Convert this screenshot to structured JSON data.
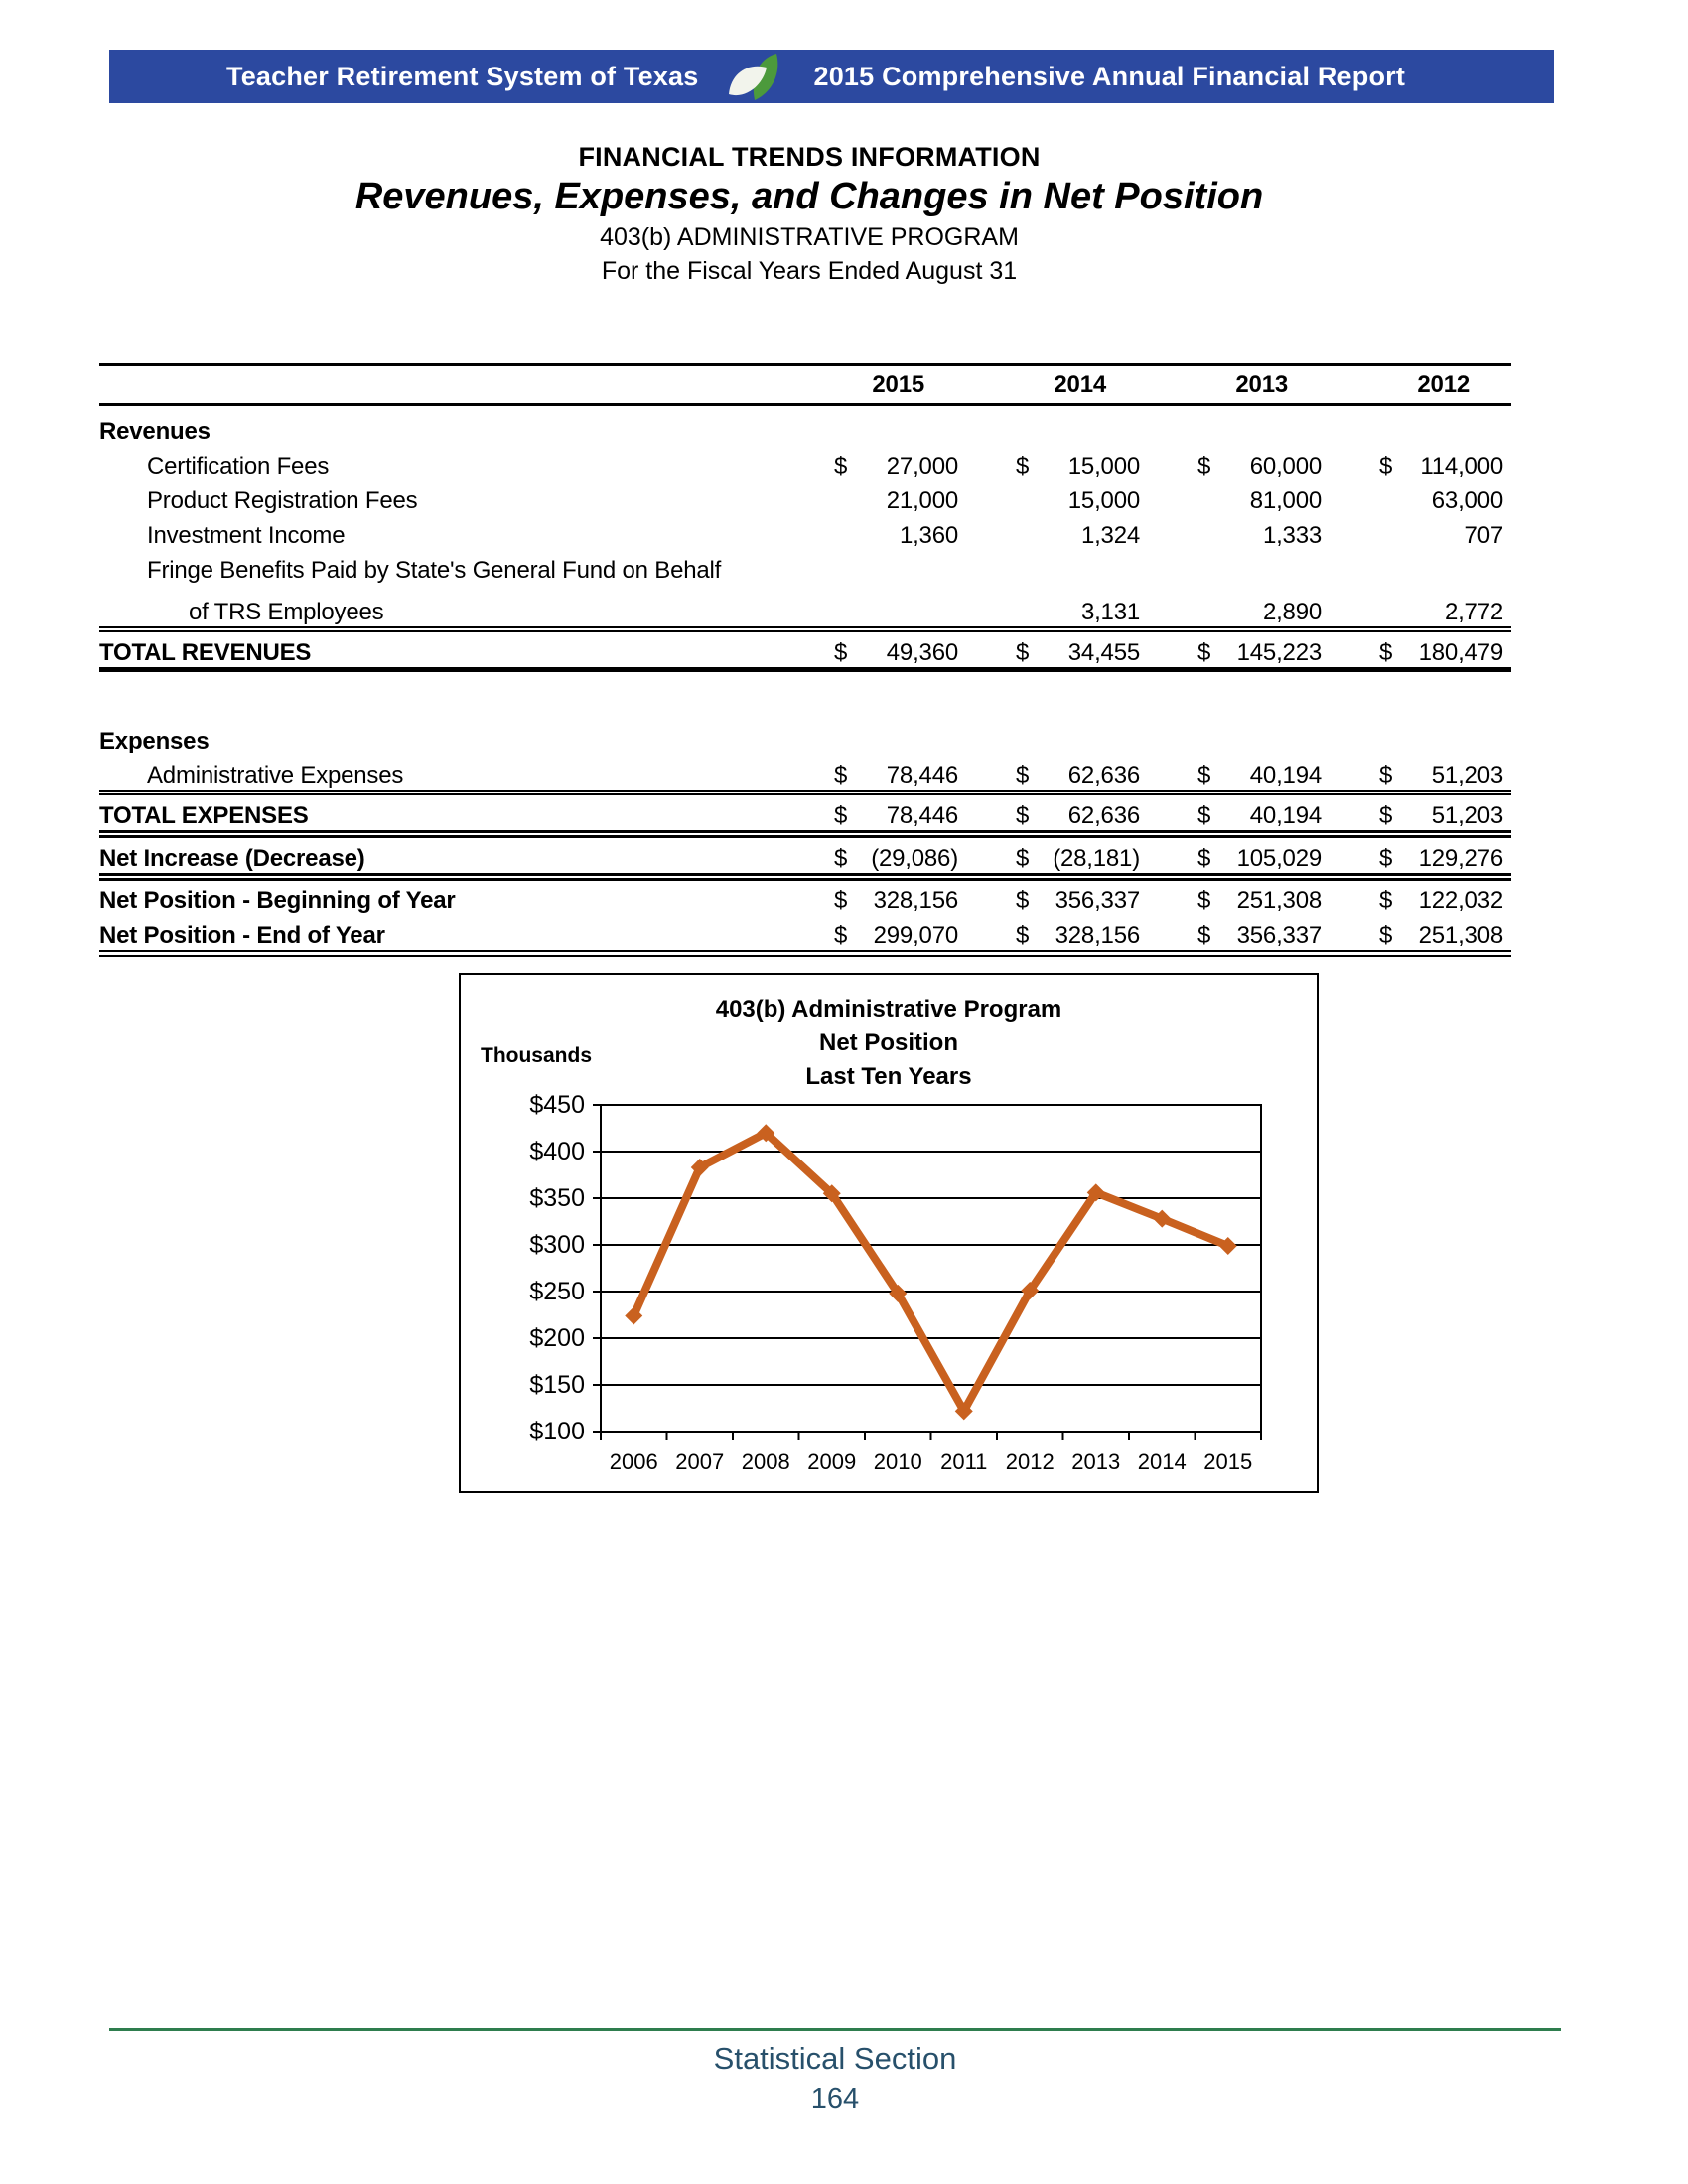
{
  "banner": {
    "org": "Teacher Retirement System of Texas",
    "report": "2015 Comprehensive Annual Financial Report",
    "bg_color": "#2c49a0",
    "leaf_green": "#4c9a3c",
    "leaf_white": "#f2f4ec"
  },
  "heading": {
    "section": "FINANCIAL TRENDS INFORMATION",
    "title": "Revenues, Expenses, and Changes in Net Position",
    "program": "403(b) ADMINISTRATIVE PROGRAM",
    "period": "For the Fiscal Years Ended August 31"
  },
  "table": {
    "years": [
      "2015",
      "2014",
      "2013",
      "2012"
    ],
    "rows": [
      {
        "style": "section",
        "label": "Revenues",
        "cells": [
          null,
          null,
          null,
          null
        ]
      },
      {
        "style": "item",
        "label": "Certification Fees",
        "cells": [
          {
            "d": "$",
            "v": "27,000"
          },
          {
            "d": "$",
            "v": "15,000"
          },
          {
            "d": "$",
            "v": "60,000"
          },
          {
            "d": "$",
            "v": "114,000"
          }
        ]
      },
      {
        "style": "item",
        "label": "Product Registration Fees",
        "cells": [
          {
            "v": "21,000"
          },
          {
            "v": "15,000"
          },
          {
            "v": "81,000"
          },
          {
            "v": "63,000"
          }
        ]
      },
      {
        "style": "item",
        "label": "Investment Income",
        "cells": [
          {
            "v": "1,360"
          },
          {
            "v": "1,324"
          },
          {
            "v": "1,333"
          },
          {
            "v": "707"
          }
        ]
      },
      {
        "style": "item",
        "label": "Fringe Benefits Paid by State's General Fund on Behalf",
        "cells": [
          null,
          null,
          null,
          null
        ]
      },
      {
        "style": "item2",
        "label": "of TRS Employees",
        "cells": [
          null,
          {
            "v": "3,131"
          },
          {
            "v": "2,890"
          },
          {
            "v": "2,772"
          }
        ]
      },
      {
        "style": "total",
        "borders": "top-double bottom-heavy",
        "label": "TOTAL REVENUES",
        "cells": [
          {
            "d": "$",
            "v": "49,360"
          },
          {
            "d": "$",
            "v": "34,455"
          },
          {
            "d": "$",
            "v": "145,223"
          },
          {
            "d": "$",
            "v": "180,479"
          }
        ]
      },
      {
        "style": "spacer"
      },
      {
        "style": "section",
        "label": "Expenses",
        "cells": [
          null,
          null,
          null,
          null
        ]
      },
      {
        "style": "item",
        "label": "Administrative Expenses",
        "cells": [
          {
            "d": "$",
            "v": "78,446"
          },
          {
            "d": "$",
            "v": "62,636"
          },
          {
            "d": "$",
            "v": "40,194"
          },
          {
            "d": "$",
            "v": "51,203"
          }
        ]
      },
      {
        "style": "total",
        "borders": "top-double-thin",
        "label": "TOTAL EXPENSES",
        "cells": [
          {
            "d": "$",
            "v": "78,446"
          },
          {
            "d": "$",
            "v": "62,636"
          },
          {
            "d": "$",
            "v": "40,194"
          },
          {
            "d": "$",
            "v": "51,203"
          }
        ]
      },
      {
        "style": "total",
        "borders": "top-heavy-double bottom-heavy-double",
        "label": "Net Increase (Decrease)",
        "cells": [
          {
            "d": "$",
            "v": "(29,086)"
          },
          {
            "d": "$",
            "v": "(28,181)"
          },
          {
            "d": "$",
            "v": "105,029"
          },
          {
            "d": "$",
            "v": "129,276"
          }
        ]
      },
      {
        "style": "bold",
        "label": "Net Position - Beginning of Year",
        "cells": [
          {
            "d": "$",
            "v": "328,156"
          },
          {
            "d": "$",
            "v": "356,337"
          },
          {
            "d": "$",
            "v": "251,308"
          },
          {
            "d": "$",
            "v": "122,032"
          }
        ]
      },
      {
        "style": "bold",
        "borders": "bottom-final",
        "label": "Net Position - End of Year",
        "cells": [
          {
            "d": "$",
            "v": "299,070"
          },
          {
            "d": "$",
            "v": "328,156"
          },
          {
            "d": "$",
            "v": "356,337"
          },
          {
            "d": "$",
            "v": "251,308"
          }
        ]
      }
    ]
  },
  "chart_data": {
    "type": "line",
    "title_lines": [
      "403(b) Administrative Program",
      "Net Position",
      "Last Ten Years"
    ],
    "y_axis_label": "Thousands",
    "x": [
      "2006",
      "2007",
      "2008",
      "2009",
      "2010",
      "2011",
      "2012",
      "2013",
      "2014",
      "2015"
    ],
    "values": [
      224,
      383,
      420,
      355,
      248,
      122,
      251,
      356,
      328,
      299
    ],
    "y_ticks": [
      450,
      400,
      350,
      300,
      250,
      200,
      150,
      100
    ],
    "y_tick_prefix": "$",
    "ylim": [
      100,
      450
    ],
    "line_color": "#c9611f",
    "marker": "diamond",
    "grid": true,
    "legend": "none"
  },
  "footer": {
    "section": "Statistical Section",
    "page": "164",
    "rule_color": "#2e7d4e",
    "text_color": "#27506b"
  }
}
